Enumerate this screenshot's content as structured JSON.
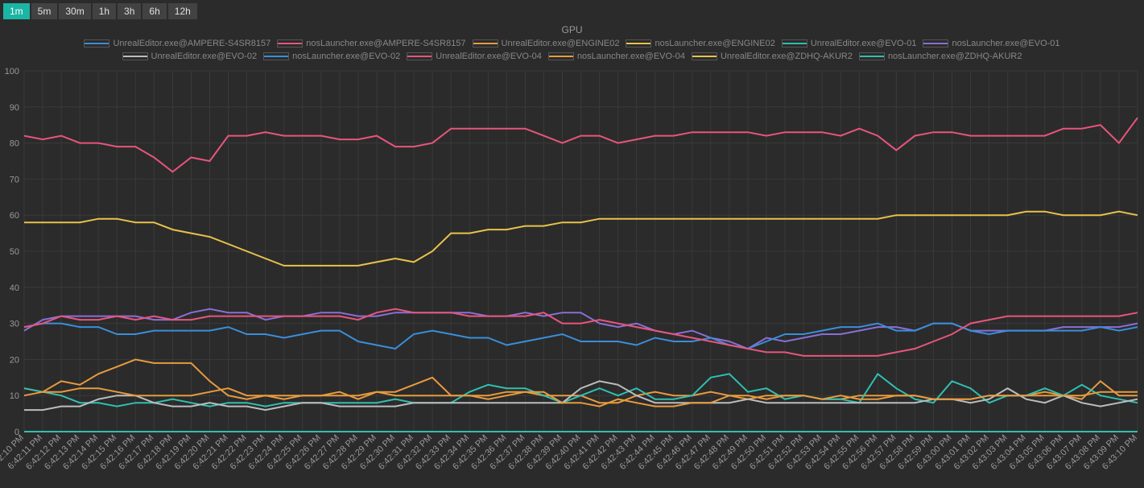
{
  "time_buttons": [
    {
      "label": "1m",
      "active": true
    },
    {
      "label": "5m",
      "active": false
    },
    {
      "label": "30m",
      "active": false
    },
    {
      "label": "1h",
      "active": false
    },
    {
      "label": "3h",
      "active": false
    },
    {
      "label": "6h",
      "active": false
    },
    {
      "label": "12h",
      "active": false
    }
  ],
  "chart": {
    "title": "GPU",
    "background_color": "#2b2b2b",
    "grid_color": "#3a3a3a",
    "axis_color": "#888888",
    "label_color": "#999999",
    "font_size": 11,
    "ylim": [
      0,
      100
    ],
    "yticks": [
      0,
      10,
      20,
      30,
      40,
      50,
      60,
      70,
      80,
      90,
      100
    ],
    "xlabels": [
      "6:42:10 PM",
      "6:42:11 PM",
      "6:42:12 PM",
      "6:42:13 PM",
      "6:42:14 PM",
      "6:42:15 PM",
      "6:42:16 PM",
      "6:42:17 PM",
      "6:42:18 PM",
      "6:42:19 PM",
      "6:42:20 PM",
      "6:42:21 PM",
      "6:42:22 PM",
      "6:42:23 PM",
      "6:42:24 PM",
      "6:42:25 PM",
      "6:42:26 PM",
      "6:42:27 PM",
      "6:42:28 PM",
      "6:42:29 PM",
      "6:42:30 PM",
      "6:42:31 PM",
      "6:42:32 PM",
      "6:42:33 PM",
      "6:42:34 PM",
      "6:42:35 PM",
      "6:42:36 PM",
      "6:42:37 PM",
      "6:42:38 PM",
      "6:42:39 PM",
      "6:42:40 PM",
      "6:42:41 PM",
      "6:42:42 PM",
      "6:42:43 PM",
      "6:42:44 PM",
      "6:42:45 PM",
      "6:42:46 PM",
      "6:42:47 PM",
      "6:42:48 PM",
      "6:42:49 PM",
      "6:42:50 PM",
      "6:42:51 PM",
      "6:42:52 PM",
      "6:42:53 PM",
      "6:42:54 PM",
      "6:42:55 PM",
      "6:42:56 PM",
      "6:42:57 PM",
      "6:42:58 PM",
      "6:42:59 PM",
      "6:43:00 PM",
      "6:43:01 PM",
      "6:43:02 PM",
      "6:43:03 PM",
      "6:43:04 PM",
      "6:43:05 PM",
      "6:43:06 PM",
      "6:43:07 PM",
      "6:43:08 PM",
      "6:43:09 PM",
      "6:43:10 PM"
    ],
    "series": [
      {
        "name": "UnrealEditor.exe@AMPERE-S4SR8157",
        "color": "#3a8edb",
        "values": [
          0,
          0,
          0,
          0,
          0,
          0,
          0,
          0,
          0,
          0,
          0,
          0,
          0,
          0,
          0,
          0,
          0,
          0,
          0,
          0,
          0,
          0,
          0,
          0,
          0,
          0,
          0,
          0,
          0,
          0,
          0,
          0,
          0,
          0,
          0,
          0,
          0,
          0,
          0,
          0,
          0,
          0,
          0,
          0,
          0,
          0,
          0,
          0,
          0,
          0,
          0,
          0,
          0,
          0,
          0,
          0,
          0,
          0,
          0,
          0,
          0
        ]
      },
      {
        "name": "nosLauncher.exe@AMPERE-S4SR8157",
        "color": "#e8557c",
        "values": [
          82,
          81,
          82,
          80,
          80,
          79,
          79,
          76,
          72,
          76,
          75,
          82,
          82,
          83,
          82,
          82,
          82,
          81,
          81,
          82,
          79,
          79,
          80,
          84,
          84,
          84,
          84,
          84,
          82,
          80,
          82,
          82,
          80,
          81,
          82,
          82,
          83,
          83,
          83,
          83,
          82,
          83,
          83,
          83,
          82,
          84,
          82,
          78,
          82,
          83,
          83,
          82,
          82,
          82,
          82,
          82,
          84,
          84,
          85,
          80,
          87
        ]
      },
      {
        "name": "UnrealEditor.exe@ENGINE02",
        "color": "#e89b3e",
        "values": [
          12,
          11,
          14,
          13,
          16,
          18,
          20,
          19,
          19,
          19,
          14,
          10,
          9,
          10,
          9,
          10,
          10,
          11,
          9,
          11,
          11,
          13,
          15,
          10,
          10,
          9,
          10,
          11,
          10,
          10,
          10,
          8,
          8,
          10,
          11,
          10,
          10,
          11,
          10,
          9,
          10,
          10,
          10,
          9,
          9,
          10,
          10,
          10,
          10,
          9,
          9,
          9,
          10,
          10,
          10,
          11,
          10,
          9,
          14,
          10,
          10
        ]
      },
      {
        "name": "nosLauncher.exe@ENGINE02",
        "color": "#e8c24a",
        "values": [
          58,
          58,
          58,
          58,
          59,
          59,
          58,
          58,
          56,
          55,
          54,
          52,
          50,
          48,
          46,
          46,
          46,
          46,
          46,
          47,
          48,
          47,
          50,
          55,
          55,
          56,
          56,
          57,
          57,
          58,
          58,
          59,
          59,
          59,
          59,
          59,
          59,
          59,
          59,
          59,
          59,
          59,
          59,
          59,
          59,
          59,
          59,
          60,
          60,
          60,
          60,
          60,
          60,
          60,
          61,
          61,
          60,
          60,
          60,
          61,
          60
        ]
      },
      {
        "name": "UnrealEditor.exe@EVO-01",
        "color": "#2fc0b0",
        "values": [
          12,
          11,
          10,
          8,
          8,
          7,
          8,
          8,
          9,
          8,
          7,
          8,
          8,
          7,
          8,
          8,
          8,
          8,
          8,
          8,
          9,
          8,
          8,
          8,
          11,
          13,
          12,
          12,
          10,
          8,
          10,
          12,
          10,
          12,
          9,
          9,
          10,
          15,
          16,
          11,
          12,
          9,
          10,
          9,
          9,
          8,
          16,
          12,
          9,
          8,
          14,
          12,
          8,
          10,
          10,
          12,
          10,
          13,
          10,
          9,
          8
        ]
      },
      {
        "name": "nosLauncher.exe@EVO-01",
        "color": "#8a6fd6",
        "values": [
          28,
          31,
          32,
          32,
          32,
          32,
          32,
          31,
          31,
          33,
          34,
          33,
          33,
          31,
          32,
          32,
          33,
          33,
          32,
          32,
          33,
          33,
          33,
          33,
          33,
          32,
          32,
          33,
          32,
          33,
          33,
          30,
          29,
          30,
          28,
          27,
          28,
          26,
          25,
          23,
          26,
          25,
          26,
          27,
          27,
          28,
          29,
          29,
          28,
          30,
          30,
          28,
          28,
          28,
          28,
          28,
          29,
          29,
          29,
          29,
          30
        ]
      },
      {
        "name": "UnrealEditor.exe@EVO-02",
        "color": "#bdbdbd",
        "values": [
          6,
          6,
          7,
          7,
          9,
          10,
          10,
          8,
          7,
          7,
          8,
          7,
          7,
          6,
          7,
          8,
          8,
          7,
          7,
          7,
          7,
          8,
          8,
          8,
          8,
          8,
          8,
          8,
          8,
          8,
          12,
          14,
          13,
          10,
          8,
          8,
          8,
          8,
          8,
          9,
          8,
          8,
          8,
          8,
          8,
          8,
          8,
          8,
          8,
          9,
          9,
          8,
          9,
          12,
          9,
          8,
          10,
          8,
          7,
          8,
          9
        ]
      },
      {
        "name": "nosLauncher.exe@EVO-02",
        "color": "#3a8edb",
        "values": [
          29,
          30,
          30,
          29,
          29,
          27,
          27,
          28,
          28,
          28,
          28,
          29,
          27,
          27,
          26,
          27,
          28,
          28,
          25,
          24,
          23,
          27,
          28,
          27,
          26,
          26,
          24,
          25,
          26,
          27,
          25,
          25,
          25,
          24,
          26,
          25,
          25,
          26,
          24,
          23,
          25,
          27,
          27,
          28,
          29,
          29,
          30,
          28,
          28,
          30,
          30,
          28,
          27,
          28,
          28,
          28,
          28,
          28,
          29,
          28,
          29
        ]
      },
      {
        "name": "UnrealEditor.exe@EVO-04",
        "color": "#e8557c",
        "values": [
          29,
          30,
          32,
          31,
          31,
          32,
          31,
          32,
          31,
          31,
          32,
          32,
          32,
          32,
          32,
          32,
          32,
          32,
          31,
          33,
          34,
          33,
          33,
          33,
          32,
          32,
          32,
          32,
          33,
          30,
          30,
          31,
          30,
          29,
          28,
          27,
          26,
          25,
          24,
          23,
          22,
          22,
          21,
          21,
          21,
          21,
          21,
          22,
          23,
          25,
          27,
          30,
          31,
          32,
          32,
          32,
          32,
          32,
          32,
          32,
          33
        ]
      },
      {
        "name": "nosLauncher.exe@EVO-04",
        "color": "#e89b3e",
        "values": [
          10,
          11,
          11,
          12,
          12,
          11,
          10,
          10,
          10,
          10,
          11,
          12,
          10,
          10,
          10,
          10,
          10,
          10,
          10,
          11,
          10,
          10,
          10,
          10,
          10,
          10,
          11,
          11,
          11,
          8,
          8,
          7,
          9,
          8,
          7,
          7,
          8,
          8,
          10,
          10,
          9,
          10,
          10,
          9,
          10,
          9,
          9,
          10,
          10,
          9,
          9,
          9,
          10,
          10,
          10,
          10,
          10,
          10,
          11,
          11,
          11
        ]
      },
      {
        "name": "UnrealEditor.exe@ZDHQ-AKUR2",
        "color": "#e8c24a",
        "values": [
          0,
          0,
          0,
          0,
          0,
          0,
          0,
          0,
          0,
          0,
          0,
          0,
          0,
          0,
          0,
          0,
          0,
          0,
          0,
          0,
          0,
          0,
          0,
          0,
          0,
          0,
          0,
          0,
          0,
          0,
          0,
          0,
          0,
          0,
          0,
          0,
          0,
          0,
          0,
          0,
          0,
          0,
          0,
          0,
          0,
          0,
          0,
          0,
          0,
          0,
          0,
          0,
          0,
          0,
          0,
          0,
          0,
          0,
          0,
          0,
          0
        ]
      },
      {
        "name": "nosLauncher.exe@ZDHQ-AKUR2",
        "color": "#2fc0b0",
        "values": [
          0,
          0,
          0,
          0,
          0,
          0,
          0,
          0,
          0,
          0,
          0,
          0,
          0,
          0,
          0,
          0,
          0,
          0,
          0,
          0,
          0,
          0,
          0,
          0,
          0,
          0,
          0,
          0,
          0,
          0,
          0,
          0,
          0,
          0,
          0,
          0,
          0,
          0,
          0,
          0,
          0,
          0,
          0,
          0,
          0,
          0,
          0,
          0,
          0,
          0,
          0,
          0,
          0,
          0,
          0,
          0,
          0,
          0,
          0,
          0,
          0
        ]
      }
    ]
  }
}
